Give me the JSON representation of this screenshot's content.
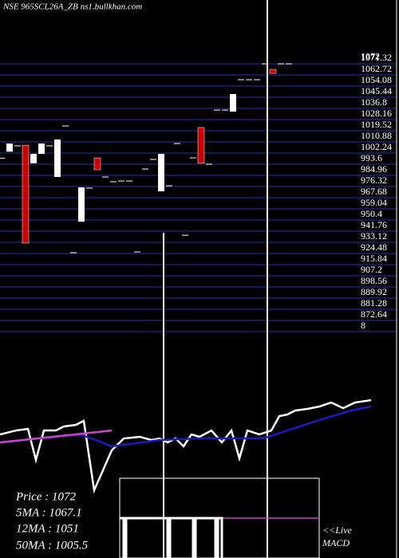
{
  "chart_data": {
    "type": "candlestick",
    "title": "NSE 965SCL26A_ZB ns1.bullkhan.com",
    "up_color": "#ffffff",
    "down_color": "#cc0000",
    "grid": true,
    "grid_color": "#1c1c80",
    "ylim": [
      856,
      1080
    ],
    "yticks": [
      1071.32,
      1062.72,
      1054.08,
      1045.44,
      1036.8,
      1028.16,
      1019.52,
      1010.88,
      1002.24,
      993.6,
      984.96,
      976.32,
      967.68,
      959.04,
      950.4,
      941.76,
      933.12,
      924.48,
      915.84,
      907.2,
      898.56,
      889.92,
      881.28,
      872.64,
      {
        "value": 864,
        "label": "8"
      }
    ],
    "last_price": {
      "value": 1072,
      "label": "1072"
    },
    "open": [
      994,
      999,
      1003.5,
      1004,
      990,
      997.3,
      1003.5,
      979.4,
      1018.9,
      920.8,
      944.8,
      970.8,
      994.2,
      979.4,
      975.7,
      976.3,
      976.3,
      921.4,
      985.6,
      993,
      968.3,
      972.6,
      1005.3,
      934.3,
      994.2,
      1017.7,
      989.3,
      1031.2,
      1031.2,
      1030,
      1054.7,
      1054.7,
      1054.7,
      1067,
      1062.7,
      1067,
      1067
    ],
    "close": [
      994,
      1005.3,
      1003.5,
      928.2,
      997.3,
      1005.3,
      1003.5,
      1008.4,
      1018.9,
      920.8,
      971.4,
      970.8,
      985,
      979.4,
      975.7,
      976.3,
      976.3,
      921.4,
      985.6,
      993,
      997.3,
      972.6,
      1005.3,
      934.3,
      994.2,
      990,
      989.3,
      1031.2,
      1031.2,
      1043.6,
      1054.7,
      1054.7,
      1054.7,
      1067,
      1059.6,
      1067,
      1067
    ],
    "indicator": {
      "ylim": [
        0,
        100
      ],
      "xlim": [
        0,
        50
      ],
      "series": [
        {
          "name": "Price",
          "color": "#ffffff",
          "x": [
            0,
            2,
            3.5,
            4.5,
            5.5,
            7,
            8,
            9.5,
            10.5,
            11.8,
            14,
            15.5,
            17.5,
            19,
            20,
            21,
            22,
            23,
            24,
            25,
            26.5,
            27.8,
            29,
            30,
            31,
            32.5,
            34,
            35,
            36,
            37,
            38.5,
            40,
            41.5,
            43,
            44.5,
            46.5
          ],
          "values": [
            57.7,
            61.5,
            63.1,
            33.1,
            61.5,
            61.5,
            65.4,
            66.9,
            70.8,
            3.8,
            42.3,
            53.8,
            55.4,
            52.3,
            53.8,
            50,
            53.8,
            46.2,
            57.7,
            55.4,
            61.5,
            50,
            61.5,
            34.6,
            61.5,
            57.7,
            61.5,
            75.4,
            76.9,
            80.8,
            82.3,
            84.6,
            88.5,
            83.1,
            88.5,
            90.8
          ]
        },
        {
          "name": "50MA",
          "color": "#1a1acc",
          "x": [
            0,
            10,
            11.5,
            14,
            20,
            25,
            30,
            33,
            36,
            40,
            44,
            46.5
          ],
          "values": [
            50,
            57.7,
            53.8,
            46.2,
            52.3,
            53.8,
            53.8,
            53.8,
            61.5,
            71.5,
            80.8,
            84.6
          ]
        },
        {
          "name": "12MA",
          "color": "#cc44cc",
          "x": [
            0,
            14
          ],
          "values": [
            50,
            61.5
          ]
        }
      ]
    },
    "stats": {
      "price": "Price   : 1072",
      "ma5": "5MA : 1067.1",
      "ma12": "12MA : 1051",
      "ma50": "50MA : 1005.5"
    },
    "live": "<<Live",
    "macd": "MACD"
  }
}
